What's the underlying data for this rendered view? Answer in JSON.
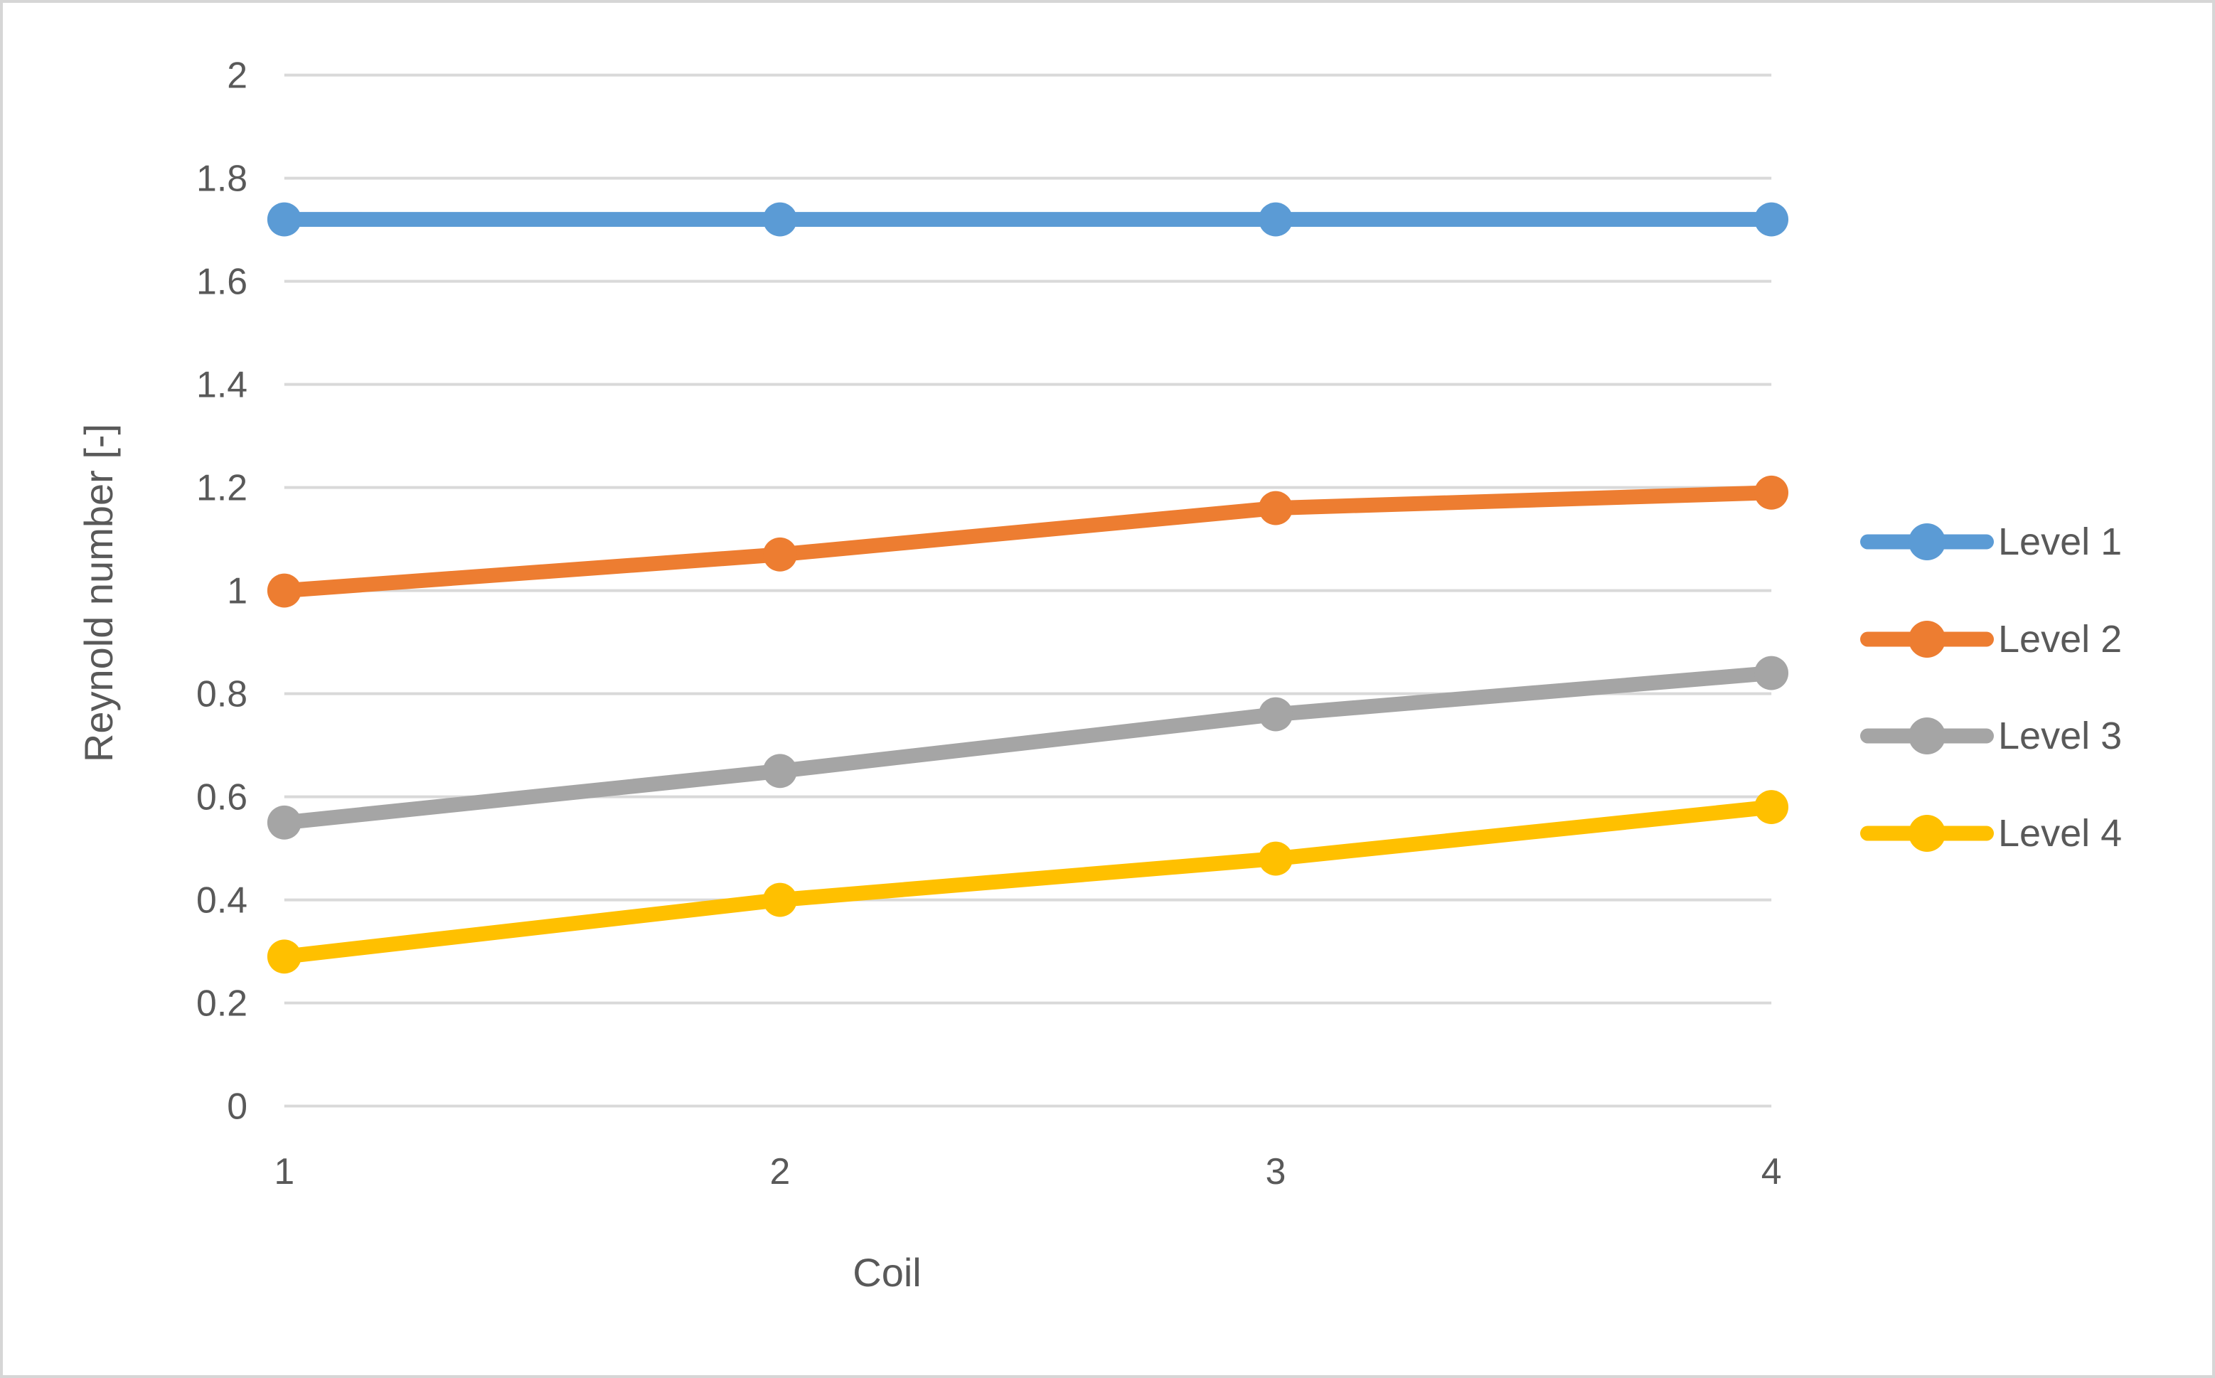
{
  "figure": {
    "background": "#FFFFFF",
    "border_color": "#D6D6D6"
  },
  "chart_data": {
    "type": "line",
    "title": "",
    "xlabel": "Coil",
    "ylabel": "Reynold number [-]",
    "x": [
      1,
      2,
      3,
      4
    ],
    "x_tick_labels": [
      "1",
      "2",
      "3",
      "4"
    ],
    "y_tick_labels": [
      "0",
      "0.2",
      "0.4",
      "0.6",
      "0.8",
      "1",
      "1.2",
      "1.4",
      "1.6",
      "1.8",
      "2"
    ],
    "ylim": [
      0,
      2
    ],
    "y_tick_step": 0.2,
    "grid": "horizontal-only",
    "gridline_color": "#D9D9D9",
    "axis_text_color": "#595959",
    "legend_position": "right",
    "marker_style": "circle",
    "series": [
      {
        "name": "Level 1",
        "color": "#5B9BD5",
        "values": [
          1.72,
          1.72,
          1.72,
          1.72
        ]
      },
      {
        "name": "Level 2",
        "color": "#ED7D31",
        "values": [
          1.0,
          1.07,
          1.16,
          1.19
        ]
      },
      {
        "name": "Level 3",
        "color": "#A5A5A5",
        "values": [
          0.55,
          0.65,
          0.76,
          0.84
        ]
      },
      {
        "name": "Level 4",
        "color": "#FFC000",
        "values": [
          0.29,
          0.4,
          0.48,
          0.58
        ]
      }
    ]
  }
}
